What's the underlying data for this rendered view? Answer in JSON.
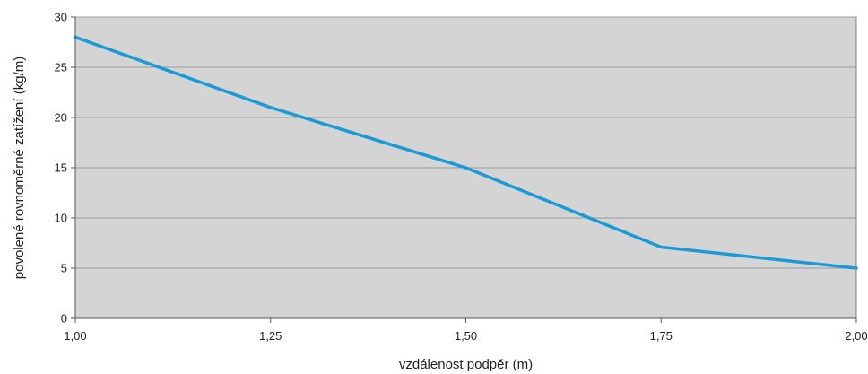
{
  "chart_data": {
    "type": "line",
    "xlabel": "vzdálenost podpěr (m)",
    "ylabel": "povolené rovnoměrné zatížení (kg/m)",
    "x": [
      1.0,
      1.25,
      1.5,
      1.75,
      2.0
    ],
    "x_tick_labels": [
      "1,00",
      "1,25",
      "1,50",
      "1,75",
      "2,00"
    ],
    "y_ticks": [
      0,
      5,
      10,
      15,
      20,
      25,
      30
    ],
    "y_tick_labels": [
      "0",
      "5",
      "10",
      "15",
      "20",
      "25",
      "30"
    ],
    "xlim": [
      1.0,
      2.0
    ],
    "ylim": [
      0,
      30
    ],
    "grid": "horizontal",
    "series": [
      {
        "values": [
          28,
          21,
          15,
          7.1,
          5
        ],
        "color": "#1b9ad6"
      }
    ],
    "plot_background": "#d4d4d4",
    "grid_color": "#9a9a9a"
  }
}
